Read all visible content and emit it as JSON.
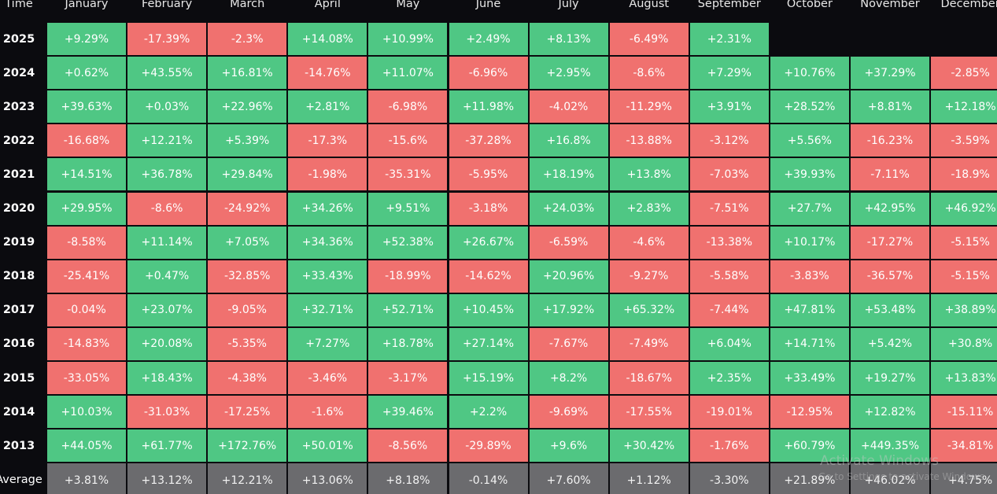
{
  "chart_data": {
    "type": "table",
    "corner_label": "Time",
    "columns": [
      "January",
      "February",
      "March",
      "April",
      "May",
      "June",
      "July",
      "August",
      "September",
      "October",
      "November",
      "December"
    ],
    "rows": [
      {
        "year": "2025",
        "values": [
          "+9.29%",
          "-17.39%",
          "-2.3%",
          "+14.08%",
          "+10.99%",
          "+2.49%",
          "+8.13%",
          "-6.49%",
          "+2.31%",
          null,
          null,
          null
        ]
      },
      {
        "year": "2024",
        "values": [
          "+0.62%",
          "+43.55%",
          "+16.81%",
          "-14.76%",
          "+11.07%",
          "-6.96%",
          "+2.95%",
          "-8.6%",
          "+7.29%",
          "+10.76%",
          "+37.29%",
          "-2.85%"
        ]
      },
      {
        "year": "2023",
        "values": [
          "+39.63%",
          "+0.03%",
          "+22.96%",
          "+2.81%",
          "-6.98%",
          "+11.98%",
          "-4.02%",
          "-11.29%",
          "+3.91%",
          "+28.52%",
          "+8.81%",
          "+12.18%"
        ]
      },
      {
        "year": "2022",
        "values": [
          "-16.68%",
          "+12.21%",
          "+5.39%",
          "-17.3%",
          "-15.6%",
          "-37.28%",
          "+16.8%",
          "-13.88%",
          "-3.12%",
          "+5.56%",
          "-16.23%",
          "-3.59%"
        ]
      },
      {
        "year": "2021",
        "values": [
          "+14.51%",
          "+36.78%",
          "+29.84%",
          "-1.98%",
          "-35.31%",
          "-5.95%",
          "+18.19%",
          "+13.8%",
          "-7.03%",
          "+39.93%",
          "-7.11%",
          "-18.9%"
        ]
      },
      {
        "year": "2020",
        "values": [
          "+29.95%",
          "-8.6%",
          "-24.92%",
          "+34.26%",
          "+9.51%",
          "-3.18%",
          "+24.03%",
          "+2.83%",
          "-7.51%",
          "+27.7%",
          "+42.95%",
          "+46.92%"
        ]
      },
      {
        "year": "2019",
        "values": [
          "-8.58%",
          "+11.14%",
          "+7.05%",
          "+34.36%",
          "+52.38%",
          "+26.67%",
          "-6.59%",
          "-4.6%",
          "-13.38%",
          "+10.17%",
          "-17.27%",
          "-5.15%"
        ]
      },
      {
        "year": "2018",
        "values": [
          "-25.41%",
          "+0.47%",
          "-32.85%",
          "+33.43%",
          "-18.99%",
          "-14.62%",
          "+20.96%",
          "-9.27%",
          "-5.58%",
          "-3.83%",
          "-36.57%",
          "-5.15%"
        ]
      },
      {
        "year": "2017",
        "values": [
          "-0.04%",
          "+23.07%",
          "-9.05%",
          "+32.71%",
          "+52.71%",
          "+10.45%",
          "+17.92%",
          "+65.32%",
          "-7.44%",
          "+47.81%",
          "+53.48%",
          "+38.89%"
        ]
      },
      {
        "year": "2016",
        "values": [
          "-14.83%",
          "+20.08%",
          "-5.35%",
          "+7.27%",
          "+18.78%",
          "+27.14%",
          "-7.67%",
          "-7.49%",
          "+6.04%",
          "+14.71%",
          "+5.42%",
          "+30.8%"
        ]
      },
      {
        "year": "2015",
        "values": [
          "-33.05%",
          "+18.43%",
          "-4.38%",
          "-3.46%",
          "-3.17%",
          "+15.19%",
          "+8.2%",
          "-18.67%",
          "+2.35%",
          "+33.49%",
          "+19.27%",
          "+13.83%"
        ]
      },
      {
        "year": "2014",
        "values": [
          "+10.03%",
          "-31.03%",
          "-17.25%",
          "-1.6%",
          "+39.46%",
          "+2.2%",
          "-9.69%",
          "-17.55%",
          "-19.01%",
          "-12.95%",
          "+12.82%",
          "-15.11%"
        ]
      },
      {
        "year": "2013",
        "values": [
          "+44.05%",
          "+61.77%",
          "+172.76%",
          "+50.01%",
          "-8.56%",
          "-29.89%",
          "+9.6%",
          "+30.42%",
          "-1.76%",
          "+60.79%",
          "+449.35%",
          "-34.81%"
        ]
      }
    ],
    "average": {
      "label": "Average",
      "values": [
        "+3.81%",
        "+13.12%",
        "+12.21%",
        "+13.06%",
        "+8.18%",
        "-0.14%",
        "+7.60%",
        "+1.12%",
        "-3.30%",
        "+21.89%",
        "+46.02%",
        "+4.75%"
      ]
    },
    "colors": {
      "positive": "#4fc784",
      "negative": "#f0716f",
      "average": "#6b6b6e",
      "background": "#0b0b0f"
    }
  },
  "watermark": {
    "title": "Activate Windows",
    "subtitle": "Go to Settings to activate Windows."
  }
}
